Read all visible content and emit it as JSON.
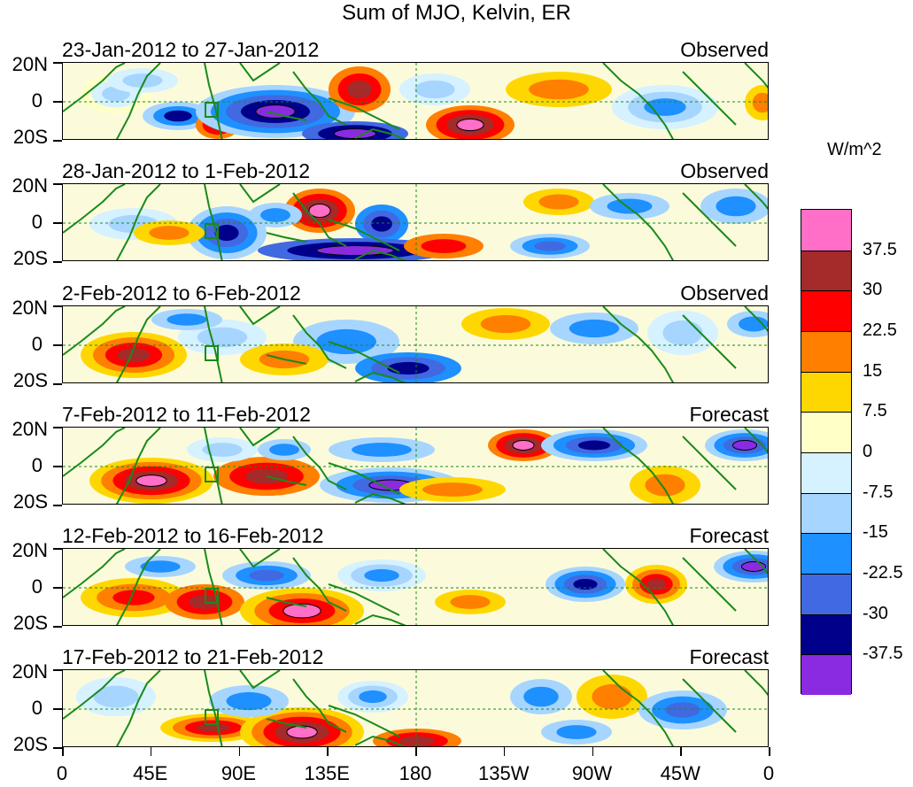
{
  "title": "Sum of MJO, Kelvin, ER",
  "panels": [
    {
      "date_range": "23-Jan-2012 to 27-Jan-2012",
      "status": "Observed"
    },
    {
      "date_range": "28-Jan-2012 to 1-Feb-2012",
      "status": "Observed"
    },
    {
      "date_range": "2-Feb-2012 to 6-Feb-2012",
      "status": "Observed"
    },
    {
      "date_range": "7-Feb-2012 to 11-Feb-2012",
      "status": "Forecast"
    },
    {
      "date_range": "12-Feb-2012 to 16-Feb-2012",
      "status": "Forecast"
    },
    {
      "date_range": "17-Feb-2012 to 21-Feb-2012",
      "status": "Forecast"
    }
  ],
  "lat_labels": [
    "20N",
    "0",
    "20S"
  ],
  "lon_labels": [
    "0",
    "45E",
    "90E",
    "135E",
    "180",
    "135W",
    "90W",
    "45W",
    "0"
  ],
  "colorbar": {
    "units": "W/m^2",
    "labels": [
      "37.5",
      "30",
      "22.5",
      "15",
      "7.5",
      "0",
      "-7.5",
      "-15",
      "-22.5",
      "-30",
      "-37.5"
    ],
    "colors": [
      "#ff6ec7",
      "#a52a2a",
      "#ff0000",
      "#ff7f00",
      "#ffd700",
      "#ffffc8",
      "#d6f1ff",
      "#a6d5ff",
      "#1e90ff",
      "#4169e1",
      "#00008b",
      "#8a2be2"
    ]
  },
  "map_colors": {
    "coast": "#1a8a1a",
    "background": "#fbfbdc"
  }
}
